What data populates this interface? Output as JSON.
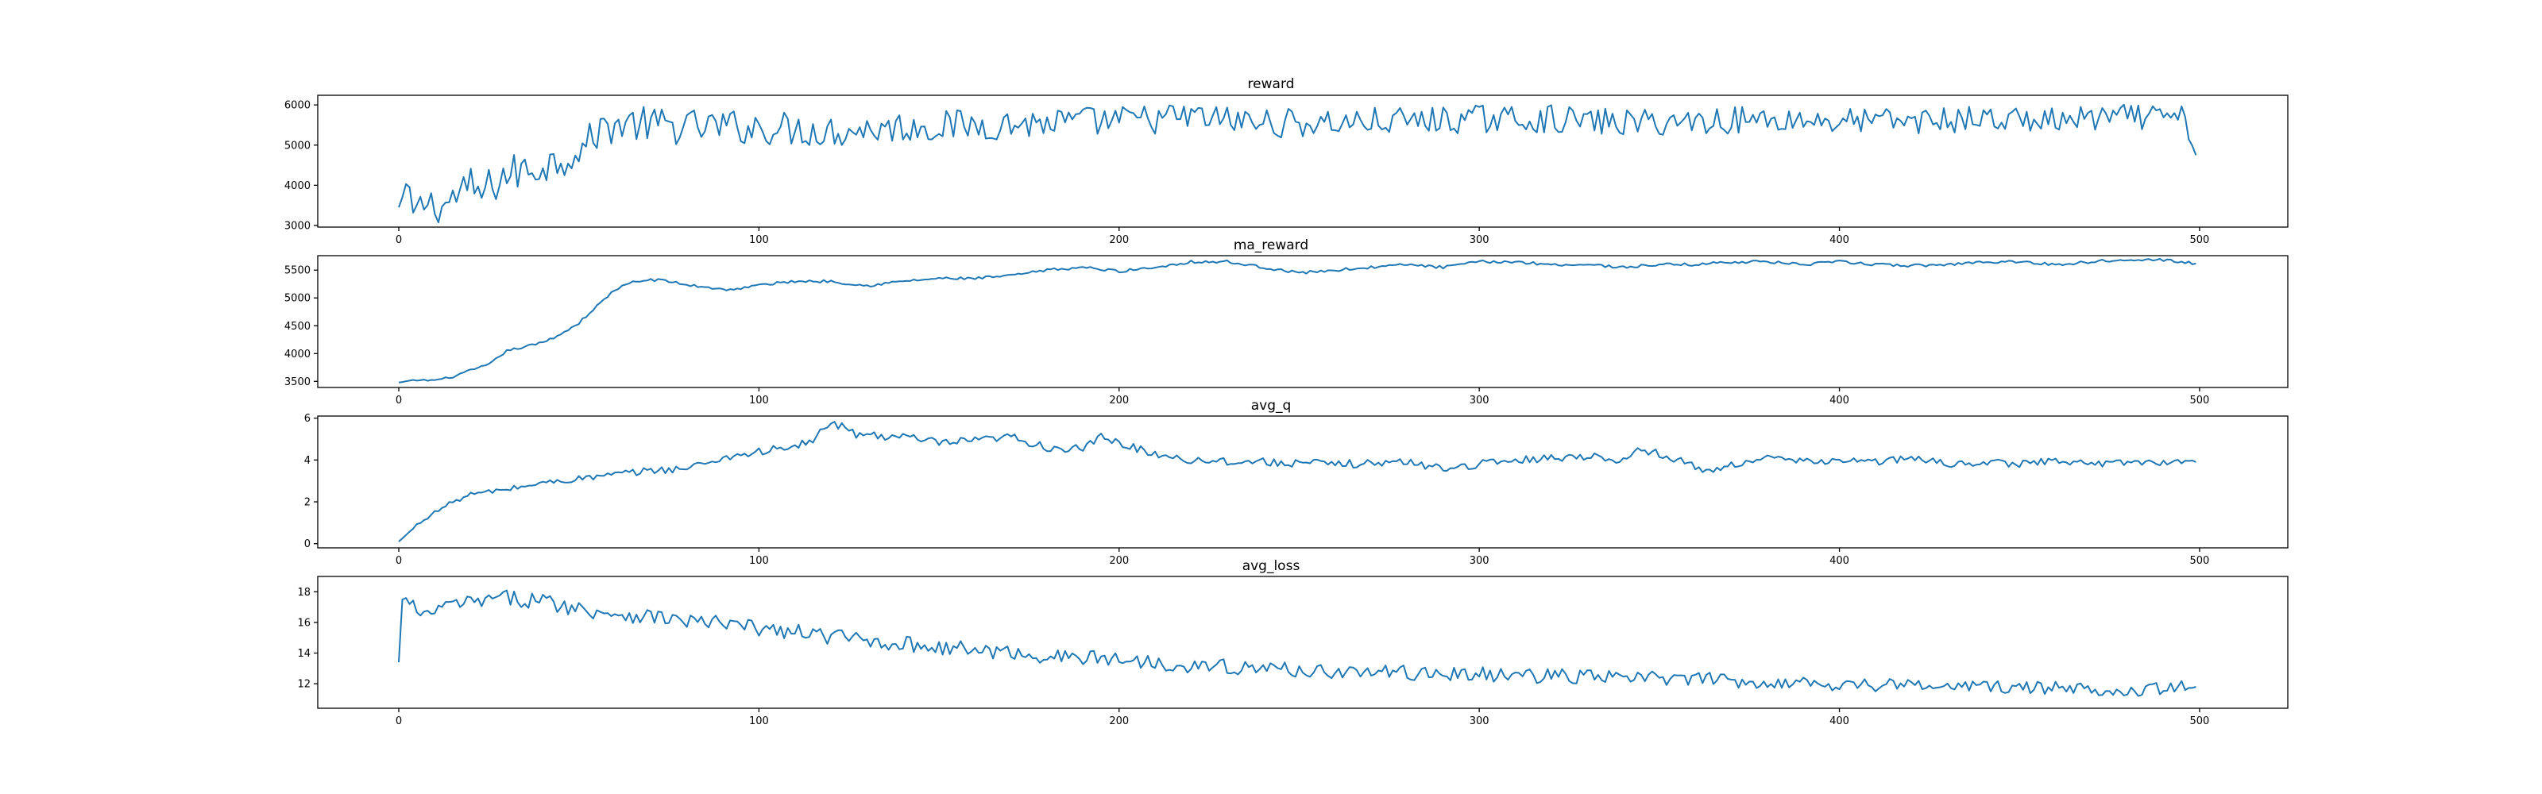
{
  "chart_data": [
    {
      "type": "line",
      "title": "reward",
      "xlabel": "",
      "ylabel": "",
      "xlim": [
        -22.5,
        524.5
      ],
      "ylim": [
        2960,
        6240
      ],
      "xticks": [
        0,
        100,
        200,
        300,
        400,
        500
      ],
      "yticks": [
        3000,
        4000,
        5000,
        6000
      ],
      "grid": false,
      "series": [
        {
          "color": "#1f77b4",
          "x_start": 0,
          "x_step": 1,
          "keypoints": [
            [
              0,
              3450
            ],
            [
              2,
              3950
            ],
            [
              4,
              3300
            ],
            [
              8,
              3600
            ],
            [
              12,
              3450
            ],
            [
              16,
              3750
            ],
            [
              20,
              3900
            ],
            [
              24,
              3800
            ],
            [
              28,
              4200
            ],
            [
              32,
              4300
            ],
            [
              36,
              4400
            ],
            [
              40,
              4500
            ],
            [
              44,
              4600
            ],
            [
              48,
              4800
            ],
            [
              52,
              5000
            ],
            [
              56,
              5400
            ],
            [
              60,
              5500
            ],
            [
              64,
              5550
            ],
            [
              70,
              5500
            ],
            [
              80,
              5450
            ],
            [
              90,
              5450
            ],
            [
              100,
              5450
            ],
            [
              120,
              5350
            ],
            [
              140,
              5450
            ],
            [
              160,
              5500
            ],
            [
              180,
              5550
            ],
            [
              200,
              5600
            ],
            [
              220,
              5700
            ],
            [
              240,
              5550
            ],
            [
              260,
              5550
            ],
            [
              280,
              5600
            ],
            [
              300,
              5650
            ],
            [
              320,
              5650
            ],
            [
              340,
              5550
            ],
            [
              360,
              5600
            ],
            [
              380,
              5650
            ],
            [
              400,
              5600
            ],
            [
              420,
              5600
            ],
            [
              440,
              5650
            ],
            [
              460,
              5600
            ],
            [
              480,
              5700
            ],
            [
              496,
              5650
            ],
            [
              499,
              4750
            ]
          ],
          "noise": [
            [
              0,
              300
            ],
            [
              20,
              550
            ],
            [
              50,
              450
            ],
            [
              80,
              450
            ],
            [
              150,
              400
            ],
            [
              300,
              350
            ],
            [
              499,
              320
            ]
          ]
        }
      ]
    },
    {
      "type": "line",
      "title": "ma_reward",
      "xlabel": "",
      "ylabel": "",
      "xlim": [
        -22.5,
        524.5
      ],
      "ylim": [
        3390,
        5760
      ],
      "xticks": [
        0,
        100,
        200,
        300,
        400,
        500
      ],
      "yticks": [
        3500,
        4000,
        4500,
        5000,
        5500
      ],
      "grid": false,
      "series": [
        {
          "color": "#1f77b4",
          "x_start": 0,
          "x_step": 1,
          "keypoints": [
            [
              0,
              3480
            ],
            [
              5,
              3520
            ],
            [
              10,
              3520
            ],
            [
              15,
              3580
            ],
            [
              20,
              3700
            ],
            [
              25,
              3800
            ],
            [
              30,
              4050
            ],
            [
              35,
              4120
            ],
            [
              40,
              4200
            ],
            [
              45,
              4350
            ],
            [
              50,
              4550
            ],
            [
              55,
              4850
            ],
            [
              60,
              5150
            ],
            [
              65,
              5280
            ],
            [
              70,
              5330
            ],
            [
              75,
              5300
            ],
            [
              80,
              5230
            ],
            [
              85,
              5200
            ],
            [
              90,
              5150
            ],
            [
              95,
              5170
            ],
            [
              100,
              5230
            ],
            [
              110,
              5300
            ],
            [
              120,
              5300
            ],
            [
              130,
              5220
            ],
            [
              140,
              5300
            ],
            [
              150,
              5350
            ],
            [
              160,
              5350
            ],
            [
              170,
              5400
            ],
            [
              180,
              5500
            ],
            [
              190,
              5550
            ],
            [
              200,
              5480
            ],
            [
              210,
              5550
            ],
            [
              220,
              5650
            ],
            [
              230,
              5650
            ],
            [
              240,
              5550
            ],
            [
              250,
              5450
            ],
            [
              260,
              5500
            ],
            [
              270,
              5550
            ],
            [
              280,
              5600
            ],
            [
              290,
              5550
            ],
            [
              300,
              5650
            ],
            [
              310,
              5650
            ],
            [
              320,
              5600
            ],
            [
              330,
              5600
            ],
            [
              340,
              5550
            ],
            [
              350,
              5600
            ],
            [
              360,
              5600
            ],
            [
              370,
              5650
            ],
            [
              380,
              5650
            ],
            [
              390,
              5600
            ],
            [
              400,
              5650
            ],
            [
              410,
              5600
            ],
            [
              420,
              5580
            ],
            [
              430,
              5600
            ],
            [
              440,
              5650
            ],
            [
              450,
              5650
            ],
            [
              460,
              5600
            ],
            [
              470,
              5650
            ],
            [
              480,
              5700
            ],
            [
              490,
              5680
            ],
            [
              499,
              5620
            ]
          ],
          "noise": [
            [
              0,
              15
            ],
            [
              60,
              25
            ],
            [
              499,
              25
            ]
          ]
        }
      ]
    },
    {
      "type": "line",
      "title": "avg_q",
      "xlabel": "",
      "ylabel": "",
      "xlim": [
        -22.5,
        524.5
      ],
      "ylim": [
        -0.2,
        6.1
      ],
      "xticks": [
        0,
        100,
        200,
        300,
        400,
        500
      ],
      "yticks": [
        0,
        2,
        4,
        6
      ],
      "grid": false,
      "series": [
        {
          "color": "#1f77b4",
          "x_start": 0,
          "x_step": 1,
          "keypoints": [
            [
              0,
              0.1
            ],
            [
              2,
              0.4
            ],
            [
              5,
              0.9
            ],
            [
              10,
              1.5
            ],
            [
              15,
              2.0
            ],
            [
              20,
              2.35
            ],
            [
              30,
              2.6
            ],
            [
              40,
              2.9
            ],
            [
              50,
              3.1
            ],
            [
              60,
              3.3
            ],
            [
              70,
              3.5
            ],
            [
              80,
              3.6
            ],
            [
              90,
              4.1
            ],
            [
              100,
              4.4
            ],
            [
              110,
              4.6
            ],
            [
              115,
              5.0
            ],
            [
              121,
              5.8
            ],
            [
              125,
              5.3
            ],
            [
              130,
              5.2
            ],
            [
              140,
              5.1
            ],
            [
              150,
              4.8
            ],
            [
              160,
              4.9
            ],
            [
              170,
              5.1
            ],
            [
              180,
              4.6
            ],
            [
              190,
              4.5
            ],
            [
              195,
              5.1
            ],
            [
              200,
              4.8
            ],
            [
              210,
              4.3
            ],
            [
              220,
              4.0
            ],
            [
              240,
              3.9
            ],
            [
              260,
              3.8
            ],
            [
              280,
              3.9
            ],
            [
              290,
              3.6
            ],
            [
              300,
              3.8
            ],
            [
              310,
              4.0
            ],
            [
              320,
              4.1
            ],
            [
              330,
              4.2
            ],
            [
              340,
              4.0
            ],
            [
              345,
              4.5
            ],
            [
              350,
              4.3
            ],
            [
              360,
              3.7
            ],
            [
              365,
              3.4
            ],
            [
              370,
              3.8
            ],
            [
              380,
              4.1
            ],
            [
              390,
              3.9
            ],
            [
              400,
              4.0
            ],
            [
              410,
              3.9
            ],
            [
              420,
              4.1
            ],
            [
              430,
              3.8
            ],
            [
              440,
              3.9
            ],
            [
              450,
              3.8
            ],
            [
              460,
              4.0
            ],
            [
              470,
              3.8
            ],
            [
              480,
              3.9
            ],
            [
              490,
              3.9
            ],
            [
              499,
              3.9
            ]
          ],
          "noise": [
            [
              0,
              0.03
            ],
            [
              20,
              0.12
            ],
            [
              120,
              0.22
            ],
            [
              499,
              0.15
            ]
          ]
        }
      ]
    },
    {
      "type": "line",
      "title": "avg_loss",
      "xlabel": "",
      "ylabel": "",
      "xlim": [
        -22.5,
        524.5
      ],
      "ylim": [
        10.4,
        19.0
      ],
      "xticks": [
        0,
        100,
        200,
        300,
        400,
        500
      ],
      "yticks": [
        12,
        14,
        16,
        18
      ],
      "grid": false,
      "series": [
        {
          "color": "#1f77b4",
          "x_start": 0,
          "x_step": 1,
          "keypoints": [
            [
              0,
              13.4
            ],
            [
              1,
              17.5
            ],
            [
              4,
              17.2
            ],
            [
              6,
              16.2
            ],
            [
              10,
              16.8
            ],
            [
              15,
              17.2
            ],
            [
              20,
              17.3
            ],
            [
              30,
              17.6
            ],
            [
              40,
              17.4
            ],
            [
              50,
              16.9
            ],
            [
              60,
              16.6
            ],
            [
              70,
              16.4
            ],
            [
              80,
              16.1
            ],
            [
              90,
              15.9
            ],
            [
              100,
              15.6
            ],
            [
              120,
              15.1
            ],
            [
              140,
              14.6
            ],
            [
              160,
              14.2
            ],
            [
              180,
              13.8
            ],
            [
              200,
              13.6
            ],
            [
              220,
              13.2
            ],
            [
              240,
              13.0
            ],
            [
              260,
              12.8
            ],
            [
              280,
              12.7
            ],
            [
              300,
              12.6
            ],
            [
              320,
              12.5
            ],
            [
              340,
              12.4
            ],
            [
              360,
              12.3
            ],
            [
              380,
              12.1
            ],
            [
              400,
              12.0
            ],
            [
              420,
              11.9
            ],
            [
              440,
              11.8
            ],
            [
              460,
              11.7
            ],
            [
              480,
              11.6
            ],
            [
              499,
              11.8
            ]
          ],
          "noise": [
            [
              0,
              0.4
            ],
            [
              40,
              0.55
            ],
            [
              200,
              0.5
            ],
            [
              499,
              0.45
            ]
          ]
        }
      ]
    }
  ]
}
